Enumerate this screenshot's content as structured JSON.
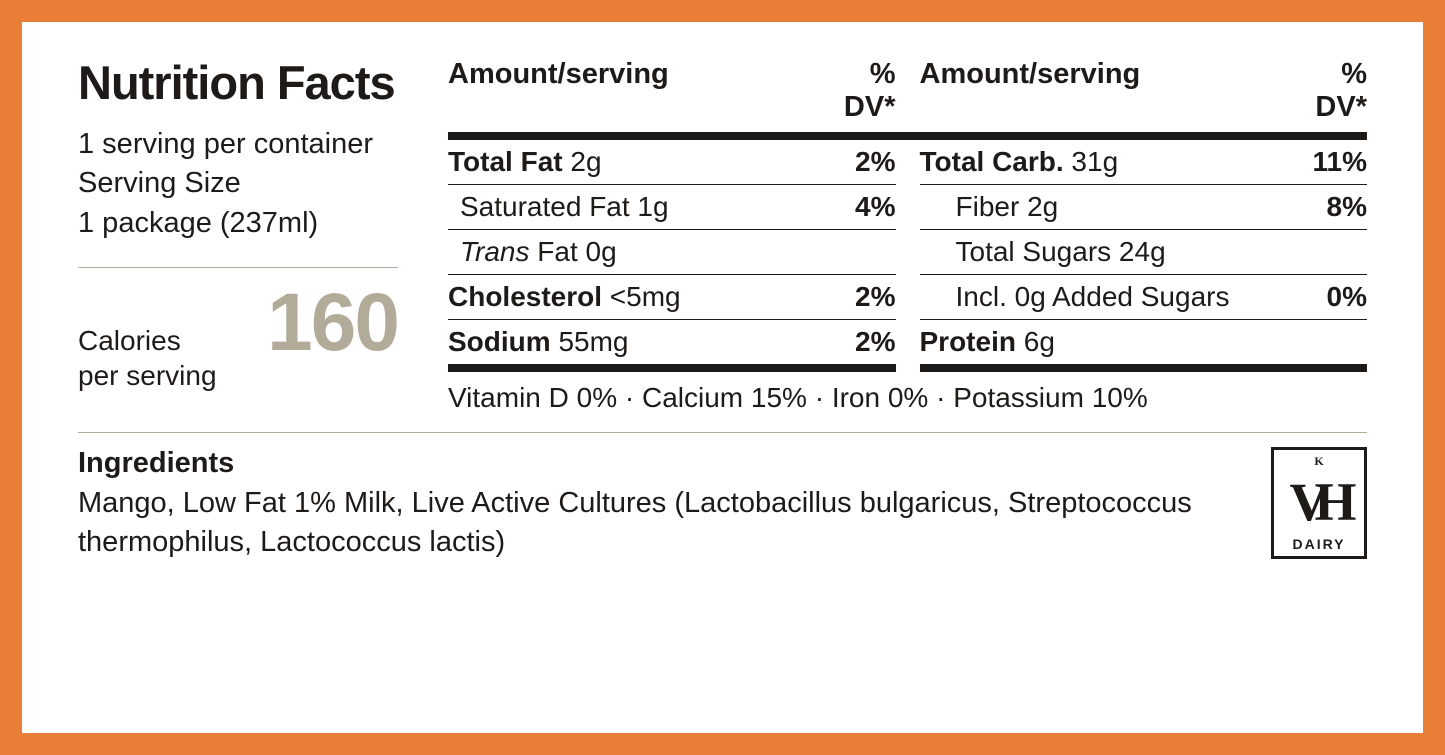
{
  "title": "Nutrition Facts",
  "servings_per_container": "1 serving per container",
  "serving_size_label": "Serving Size",
  "serving_size_value": "1 package (237ml)",
  "calories_label_1": "Calories",
  "calories_label_2": "per serving",
  "calories_value": "160",
  "headers": {
    "amount": "Amount/serving",
    "dv": "% DV*"
  },
  "nutrients": {
    "total_fat_label": "Total Fat",
    "total_fat_value": " 2g",
    "total_fat_dv": "2%",
    "sat_fat_label": "Saturated Fat 1g",
    "sat_fat_dv": "4%",
    "trans_prefix": "Trans",
    "trans_suffix": " Fat 0g",
    "cholesterol_label": "Cholesterol",
    "cholesterol_value": " <5mg",
    "cholesterol_dv": "2%",
    "sodium_label": "Sodium",
    "sodium_value": " 55mg",
    "sodium_dv": "2%",
    "total_carb_label": "Total Carb.",
    "total_carb_value": " 31g",
    "total_carb_dv": "11%",
    "fiber_label": "Fiber 2g",
    "fiber_dv": "8%",
    "total_sugars_label": "Total Sugars 24g",
    "added_sugars_label": "Incl. 0g Added Sugars",
    "added_sugars_dv": "0%",
    "protein_label": "Protein",
    "protein_value": " 6g"
  },
  "vitamins_line": "Vitamin D 0%  ·  Calcium 15%  ·  Iron 0%  ·  Potassium 10%",
  "ingredients_title": "Ingredients",
  "ingredients_text": "Mango, Low Fat 1% Milk, Live Active Cultures (Lactobacillus bulgaricus, Streptococcus thermophilus, Lactococcus lactis)",
  "cert": {
    "k": "K",
    "monogram": "VH",
    "dairy": "DAIRY"
  },
  "colors": {
    "border": "#e97e36",
    "panel_bg": "#ffffff",
    "text": "#1e1a18",
    "muted": "#b3ab99"
  }
}
